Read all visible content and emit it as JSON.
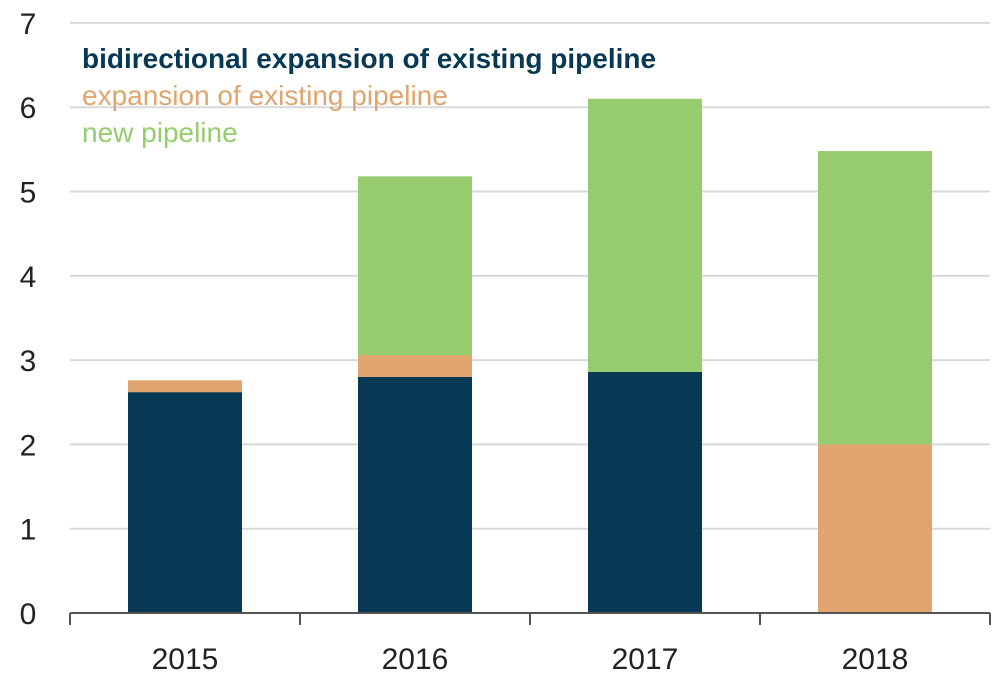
{
  "chart_data": {
    "type": "bar",
    "stacked": true,
    "title": "",
    "xlabel": "",
    "ylabel": "",
    "categories": [
      "2015",
      "2016",
      "2017",
      "2018"
    ],
    "ylim": [
      0,
      7
    ],
    "yticks": [
      0,
      1,
      2,
      3,
      4,
      5,
      6,
      7
    ],
    "grid": "horizontal",
    "legend_placement": "top-left",
    "series": [
      {
        "name": "bidirectional expansion of existing pipeline",
        "color": "#073954",
        "values": [
          2.62,
          2.8,
          2.86,
          0
        ]
      },
      {
        "name": "expansion of existing pipeline",
        "color": "#e0a56e",
        "values": [
          0.14,
          0.26,
          0,
          2.0
        ]
      },
      {
        "name": "new pipeline",
        "color": "#96cc6e",
        "values": [
          0,
          2.12,
          3.24,
          3.48
        ]
      }
    ]
  }
}
